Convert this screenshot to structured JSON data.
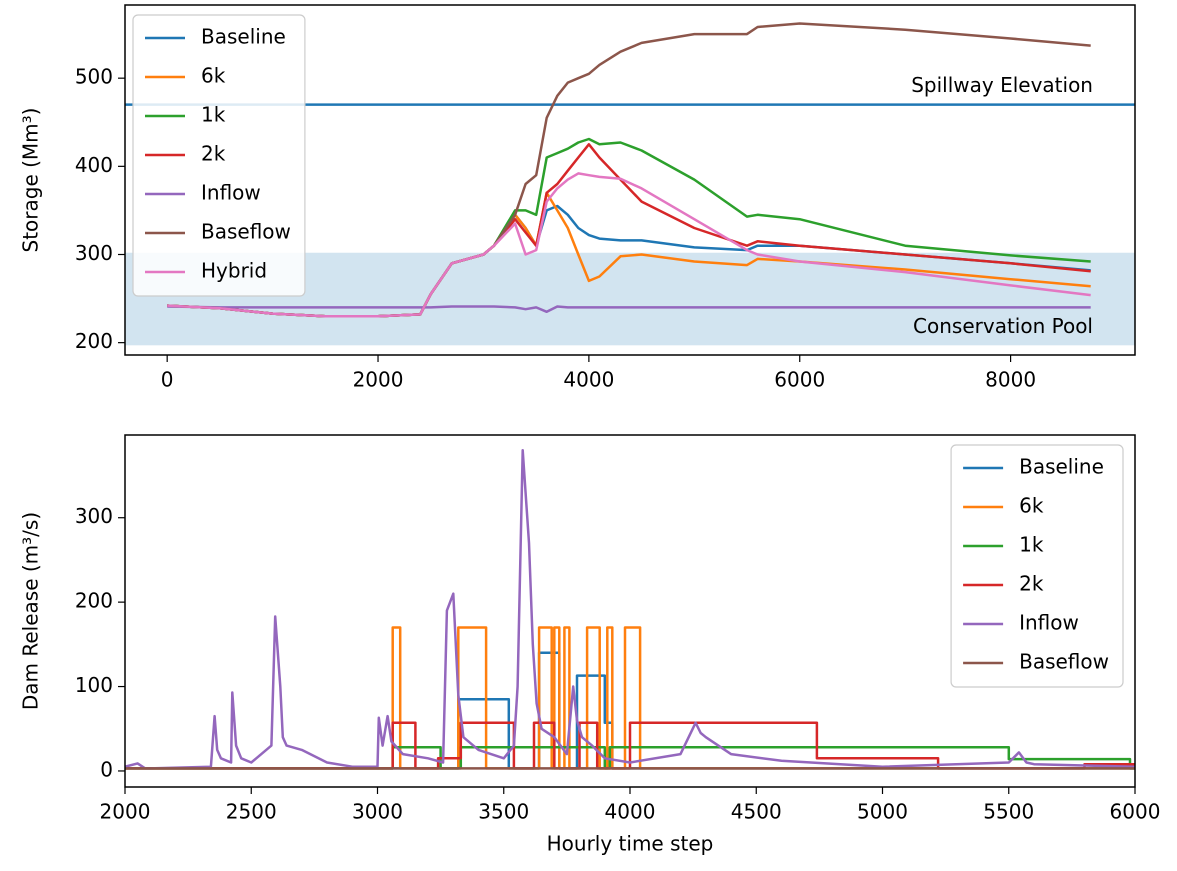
{
  "chart_data": [
    {
      "type": "line",
      "y_label": "Storage (Mm³)",
      "x": [
        0,
        500,
        1000,
        1500,
        2000,
        2400,
        2500,
        2700,
        3000,
        3100,
        3300,
        3400,
        3500,
        3600,
        3700,
        3800,
        3900,
        4000,
        4100,
        4300,
        4500,
        5000,
        5500,
        5600,
        6000,
        7000,
        8000,
        8760
      ],
      "xlim": [
        -400,
        9180
      ],
      "xticks": [
        0,
        2000,
        4000,
        6000,
        8000
      ],
      "ylim": [
        186,
        583
      ],
      "yticks": [
        200,
        300,
        400,
        500
      ],
      "hline": {
        "value": 470,
        "color": "#1f77b4",
        "label": "Spillway Elevation"
      },
      "span": {
        "from": 197,
        "to": 302,
        "color": "#1f77b4",
        "label": "Conservation Pool"
      },
      "legend": "upper left",
      "series": [
        {
          "name": "Baseline",
          "color": "#1f77b4",
          "values": [
            242,
            239,
            233,
            230,
            230,
            232,
            255,
            290,
            300,
            310,
            345,
            330,
            310,
            350,
            355,
            345,
            330,
            322,
            318,
            316,
            316,
            308,
            305,
            310,
            310,
            300,
            290,
            282
          ]
        },
        {
          "name": "6k",
          "color": "#ff7f0e",
          "values": [
            242,
            239,
            233,
            230,
            230,
            232,
            255,
            290,
            300,
            310,
            345,
            330,
            310,
            370,
            350,
            330,
            300,
            270,
            275,
            298,
            300,
            292,
            288,
            295,
            292,
            283,
            272,
            264
          ]
        },
        {
          "name": "1k",
          "color": "#2ca02c",
          "values": [
            242,
            239,
            233,
            230,
            230,
            232,
            255,
            290,
            300,
            310,
            350,
            350,
            345,
            410,
            415,
            420,
            427,
            431,
            425,
            427,
            418,
            385,
            343,
            345,
            340,
            310,
            299,
            292
          ]
        },
        {
          "name": "2k",
          "color": "#d62728",
          "values": [
            242,
            239,
            233,
            230,
            230,
            232,
            255,
            290,
            300,
            310,
            340,
            325,
            310,
            370,
            380,
            395,
            410,
            425,
            410,
            385,
            360,
            330,
            310,
            315,
            310,
            300,
            290,
            281
          ]
        },
        {
          "name": "Inflow",
          "color": "#9467bd",
          "values": [
            241,
            240,
            240,
            240,
            240,
            240,
            240,
            241,
            241,
            241,
            240,
            238,
            240,
            235,
            241,
            240,
            240,
            240,
            240,
            240,
            240,
            240,
            240,
            240,
            240,
            240,
            240,
            240
          ]
        },
        {
          "name": "Baseflow",
          "color": "#8c564b",
          "values": [
            242,
            239,
            233,
            230,
            230,
            232,
            255,
            290,
            300,
            310,
            345,
            380,
            390,
            455,
            480,
            495,
            500,
            505,
            515,
            530,
            540,
            550,
            550,
            558,
            562,
            555,
            545,
            537
          ]
        },
        {
          "name": "Hybrid",
          "color": "#e377c2",
          "values": [
            242,
            239,
            233,
            230,
            230,
            232,
            255,
            290,
            300,
            310,
            335,
            300,
            305,
            360,
            375,
            385,
            392,
            390,
            388,
            386,
            375,
            340,
            305,
            300,
            292,
            280,
            265,
            254
          ]
        }
      ]
    },
    {
      "type": "line",
      "y_label": "Dam Release (m³/s)",
      "x_label": "Hourly time step",
      "xlim": [
        2000,
        6000
      ],
      "xticks": [
        2000,
        2500,
        3000,
        3500,
        4000,
        4500,
        5000,
        5500,
        6000
      ],
      "ylim": [
        -19,
        398
      ],
      "yticks": [
        0,
        100,
        200,
        300
      ],
      "legend": "upper right",
      "series": [
        {
          "name": "Baseline",
          "color": "#1f77b4",
          "x": [
            2000,
            3320,
            3320,
            3520,
            3520,
            3640,
            3640,
            3720,
            3720,
            3790,
            3790,
            3900,
            3900,
            3930,
            3930,
            6000
          ],
          "values": [
            3,
            3,
            85,
            85,
            3,
            3,
            140,
            140,
            3,
            3,
            113,
            113,
            57,
            57,
            3,
            3
          ]
        },
        {
          "name": "6k",
          "color": "#ff7f0e",
          "x": [
            2000,
            3060,
            3060,
            3090,
            3090,
            3320,
            3320,
            3430,
            3430,
            3640,
            3640,
            3690,
            3690,
            3700,
            3700,
            3720,
            3720,
            3740,
            3740,
            3760,
            3760,
            3830,
            3830,
            3880,
            3880,
            3910,
            3910,
            3930,
            3930,
            3980,
            3980,
            4040,
            4040,
            6000
          ],
          "values": [
            3,
            3,
            170,
            170,
            3,
            3,
            170,
            170,
            3,
            3,
            170,
            170,
            3,
            3,
            170,
            170,
            3,
            3,
            170,
            170,
            3,
            3,
            170,
            170,
            3,
            3,
            170,
            170,
            3,
            3,
            170,
            170,
            3,
            3
          ]
        },
        {
          "name": "1k",
          "color": "#2ca02c",
          "x": [
            2000,
            3060,
            3060,
            3250,
            3250,
            3330,
            3330,
            3900,
            3900,
            3920,
            3920,
            5500,
            5500,
            5980,
            5980,
            6000
          ],
          "values": [
            3,
            3,
            28,
            28,
            3,
            3,
            28,
            28,
            3,
            3,
            28,
            28,
            14,
            14,
            3,
            3
          ]
        },
        {
          "name": "2k",
          "color": "#d62728",
          "x": [
            2000,
            3060,
            3060,
            3150,
            3150,
            3240,
            3240,
            3330,
            3330,
            3540,
            3540,
            3620,
            3620,
            3700,
            3700,
            3800,
            3800,
            3870,
            3870,
            4000,
            4000,
            4740,
            4740,
            5220,
            5220,
            5800,
            5800,
            6000
          ],
          "values": [
            3,
            3,
            57,
            57,
            3,
            3,
            15,
            15,
            57,
            57,
            3,
            3,
            57,
            57,
            3,
            3,
            57,
            57,
            3,
            3,
            57,
            57,
            15,
            15,
            3,
            3,
            8,
            8
          ]
        },
        {
          "name": "Inflow",
          "color": "#9467bd",
          "x": [
            2000,
            2050,
            2080,
            2100,
            2340,
            2355,
            2365,
            2380,
            2420,
            2425,
            2440,
            2460,
            2500,
            2580,
            2595,
            2615,
            2625,
            2640,
            2700,
            2800,
            2900,
            3000,
            3005,
            3020,
            3040,
            3055,
            3070,
            3100,
            3200,
            3260,
            3275,
            3300,
            3320,
            3340,
            3400,
            3500,
            3540,
            3555,
            3575,
            3600,
            3615,
            3630,
            3650,
            3700,
            3750,
            3775,
            3790,
            3810,
            3850,
            3900,
            4000,
            4200,
            4260,
            4280,
            4300,
            4400,
            4600,
            5000,
            5500,
            5540,
            5570,
            5600,
            6000
          ],
          "values": [
            5,
            9,
            3,
            3,
            5,
            65,
            25,
            15,
            10,
            93,
            30,
            15,
            10,
            30,
            183,
            100,
            40,
            30,
            25,
            10,
            5,
            5,
            63,
            30,
            65,
            35,
            30,
            20,
            15,
            10,
            190,
            210,
            90,
            40,
            25,
            15,
            30,
            100,
            380,
            270,
            150,
            80,
            50,
            40,
            20,
            100,
            60,
            40,
            30,
            15,
            10,
            20,
            57,
            45,
            40,
            20,
            12,
            5,
            10,
            22,
            10,
            8,
            5
          ]
        },
        {
          "name": "Baseflow",
          "color": "#8c564b",
          "x": [
            2000,
            6000
          ],
          "values": [
            3,
            3
          ]
        }
      ]
    }
  ]
}
